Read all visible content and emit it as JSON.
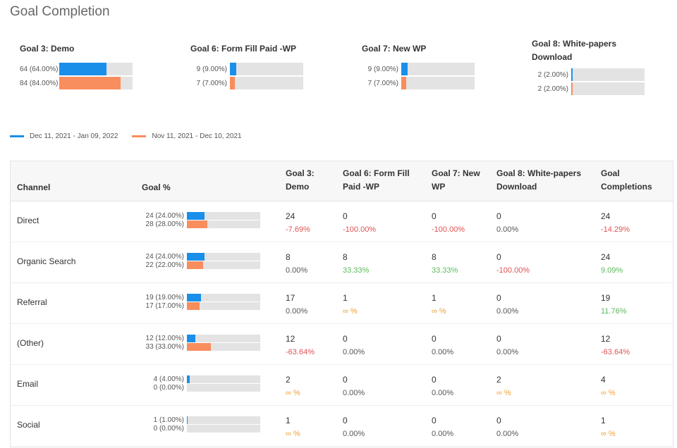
{
  "title": "Goal Completion",
  "colors": {
    "current": "#1a8fea",
    "previous": "#f88d5e",
    "track": "#e3e3e3",
    "negative": "#e05252",
    "positive": "#5cb85c",
    "infinite": "#f0a030"
  },
  "goals": [
    {
      "name": "Goal 3: Demo",
      "current": {
        "value": 64,
        "label": "64 (64.00%)"
      },
      "previous": {
        "value": 84,
        "label": "84 (84.00%)"
      }
    },
    {
      "name": "Goal 6: Form Fill Paid -WP",
      "current": {
        "value": 9,
        "label": "9 (9.00%)"
      },
      "previous": {
        "value": 7,
        "label": "7 (7.00%)"
      }
    },
    {
      "name": "Goal 7: New WP",
      "current": {
        "value": 9,
        "label": "9 (9.00%)"
      },
      "previous": {
        "value": 7,
        "label": "7 (7.00%)"
      }
    },
    {
      "name": "Goal 8: White-papers Download",
      "current": {
        "value": 2,
        "label": "2 (2.00%)"
      },
      "previous": {
        "value": 2,
        "label": "2 (2.00%)"
      }
    }
  ],
  "legend": {
    "current": "Dec 11, 2021 - Jan 09, 2022",
    "previous": "Nov 11, 2021 - Dec 10, 2021"
  },
  "table": {
    "headers": [
      "Channel",
      "Goal %",
      "Goal 3: Demo",
      "Goal 6: Form Fill Paid -WP",
      "Goal 7: New WP",
      "Goal 8: White-papers Download",
      "Goal Completions"
    ],
    "rows": [
      {
        "channel": "Direct",
        "cur": 24,
        "curLabel": "24 (24.00%)",
        "prev": 28,
        "prevLabel": "28 (28.00%)",
        "cells": [
          [
            "24",
            "-7.69%",
            "neg"
          ],
          [
            "0",
            "-100.00%",
            "neg"
          ],
          [
            "0",
            "-100.00%",
            "neg"
          ],
          [
            "0",
            "0.00%",
            ""
          ],
          [
            "24",
            "-14.29%",
            "neg"
          ]
        ]
      },
      {
        "channel": "Organic Search",
        "cur": 24,
        "curLabel": "24 (24.00%)",
        "prev": 22,
        "prevLabel": "22 (22.00%)",
        "cells": [
          [
            "8",
            "0.00%",
            ""
          ],
          [
            "8",
            "33.33%",
            "pos"
          ],
          [
            "8",
            "33.33%",
            "pos"
          ],
          [
            "0",
            "-100.00%",
            "neg"
          ],
          [
            "24",
            "9.09%",
            "pos"
          ]
        ]
      },
      {
        "channel": "Referral",
        "cur": 19,
        "curLabel": "19 (19.00%)",
        "prev": 17,
        "prevLabel": "17 (17.00%)",
        "cells": [
          [
            "17",
            "0.00%",
            ""
          ],
          [
            "1",
            "∞ %",
            "inf"
          ],
          [
            "1",
            "∞ %",
            "inf"
          ],
          [
            "0",
            "0.00%",
            ""
          ],
          [
            "19",
            "11.76%",
            "pos"
          ]
        ]
      },
      {
        "channel": "(Other)",
        "cur": 12,
        "curLabel": "12 (12.00%)",
        "prev": 33,
        "prevLabel": "33 (33.00%)",
        "cells": [
          [
            "12",
            "-63.64%",
            "neg"
          ],
          [
            "0",
            "0.00%",
            ""
          ],
          [
            "0",
            "0.00%",
            ""
          ],
          [
            "0",
            "0.00%",
            ""
          ],
          [
            "12",
            "-63.64%",
            "neg"
          ]
        ]
      },
      {
        "channel": "Email",
        "cur": 4,
        "curLabel": "4 (4.00%)",
        "prev": 0,
        "prevLabel": "0 (0.00%)",
        "cells": [
          [
            "2",
            "∞ %",
            "inf"
          ],
          [
            "0",
            "0.00%",
            ""
          ],
          [
            "0",
            "0.00%",
            ""
          ],
          [
            "2",
            "∞ %",
            "inf"
          ],
          [
            "4",
            "∞ %",
            "inf"
          ]
        ]
      },
      {
        "channel": "Social",
        "cur": 1,
        "curLabel": "1 (1.00%)",
        "prev": 0,
        "prevLabel": "0 (0.00%)",
        "cells": [
          [
            "1",
            "∞ %",
            "inf"
          ],
          [
            "0",
            "0.00%",
            ""
          ],
          [
            "0",
            "0.00%",
            ""
          ],
          [
            "0",
            "0.00%",
            ""
          ],
          [
            "1",
            "∞ %",
            "inf"
          ]
        ]
      }
    ]
  }
}
